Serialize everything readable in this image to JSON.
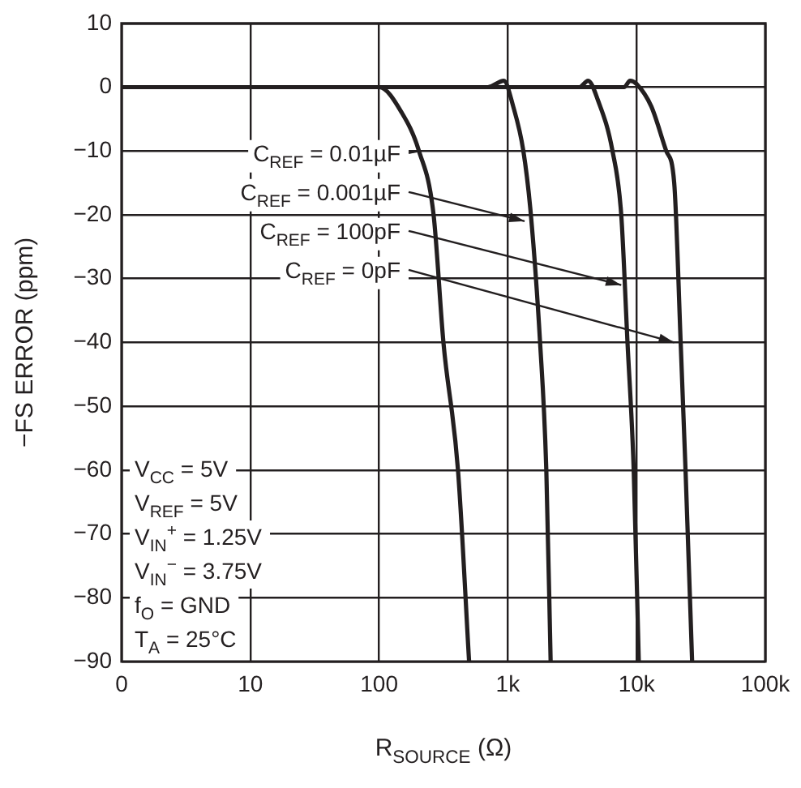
{
  "chart_data": {
    "type": "line",
    "xlabel": "R$_{SOURCE}$ (Ω)",
    "ylabel": "−FS ERROR (ppm)",
    "log": "x",
    "xlim": [
      0,
      100000
    ],
    "xticks": [
      0,
      10,
      100,
      {
        "value": 1000,
        "label": "1k"
      },
      {
        "value": 10000,
        "label": "10k"
      },
      {
        "value": 100000,
        "label": "100k"
      }
    ],
    "ylim": [
      -90,
      10
    ],
    "yticks": [
      10,
      0,
      -10,
      -20,
      -30,
      -40,
      -50,
      -60,
      -70,
      -80,
      -90
    ],
    "grid": true,
    "marker": "none",
    "line_style": "solid",
    "series": [
      {
        "color": "#231f20",
        "x": [
          1,
          10,
          50,
          100,
          150,
          204,
          265,
          316,
          410,
          500
        ],
        "values": [
          0,
          0,
          0,
          0,
          -4,
          -10,
          -20,
          -40,
          -60,
          -90
        ]
      },
      {
        "color": "#231f20",
        "x": [
          1,
          100,
          700,
          930,
          1100,
          1320,
          1510,
          1780,
          1990,
          2150
        ],
        "values": [
          0,
          0,
          0,
          1,
          -3,
          -10,
          -20,
          -40,
          -60,
          -90
        ]
      },
      {
        "color": "#231f20",
        "x": [
          1,
          1000,
          3600,
          4200,
          5000,
          6500,
          7600,
          8500,
          9500,
          10400
        ],
        "values": [
          0,
          0,
          0,
          1,
          -2,
          -10,
          -20,
          -40,
          -60,
          -90
        ]
      },
      {
        "color": "#231f20",
        "x": [
          1,
          1000,
          8000,
          8900,
          10000,
          13000,
          17000,
          19600,
          22000,
          24000,
          27000
        ],
        "values": [
          0,
          0,
          0,
          1,
          0.5,
          -3,
          -10,
          -15,
          -40,
          -60,
          -90
        ]
      }
    ],
    "annotations": [
      {
        "text": "C$_{REF}$ = 0.01µF",
        "x": 204,
        "y": -10
      },
      {
        "text": "C$_{REF}$ = 0.001µF",
        "x": 1350,
        "y": -21
      },
      {
        "text": "C$_{REF}$ = 100pF",
        "x": 7600,
        "y": -31
      },
      {
        "text": "C$_{REF}$ = 0pF",
        "x": 19600,
        "y": -40
      },
      "V$_{CC}$ = 5V",
      "V$_{REF}$ = 5V",
      "V$_{IN}$$^{+}$ = 1.25V",
      "V$_{IN}$$^{−}$ = 3.75V",
      "f$_{O}$ = GND",
      "T$_{A}$ = 25°C"
    ]
  }
}
